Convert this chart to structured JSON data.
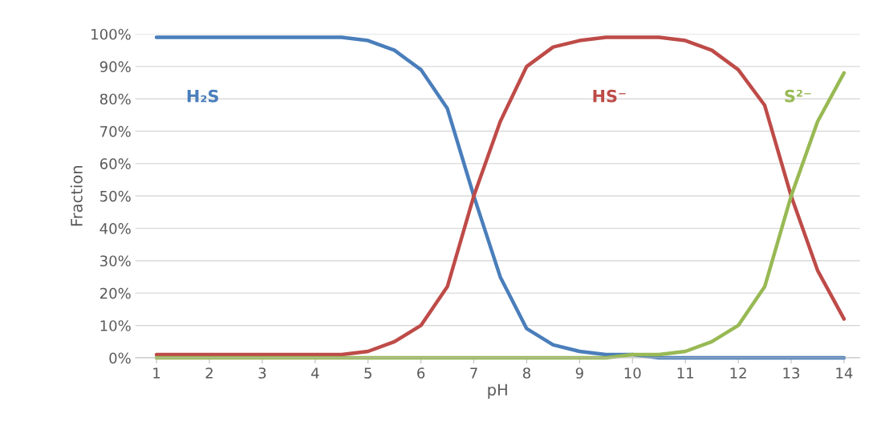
{
  "chart_data": {
    "type": "line",
    "xlabel": "pH",
    "ylabel": "Fraction",
    "xlim": [
      0.6,
      14.3
    ],
    "xticks": [
      1,
      2,
      3,
      4,
      5,
      6,
      7,
      8,
      9,
      10,
      11,
      12,
      13,
      14
    ],
    "ylim": [
      0,
      100
    ],
    "yticks": [
      {
        "value": 0,
        "label": "0%"
      },
      {
        "value": 10,
        "label": "10%"
      },
      {
        "value": 20,
        "label": "20%"
      },
      {
        "value": 30,
        "label": "30%"
      },
      {
        "value": 40,
        "label": "40%"
      },
      {
        "value": 50,
        "label": "50%"
      },
      {
        "value": 60,
        "label": "60%"
      },
      {
        "value": 70,
        "label": "70%"
      },
      {
        "value": 80,
        "label": "80%"
      },
      {
        "value": 90,
        "label": "90%"
      },
      {
        "value": 100,
        "label": "100%"
      }
    ],
    "grid": "y",
    "legend": false,
    "marker": "none",
    "line_style": "solid",
    "series": [
      {
        "name": "H₂S",
        "color": "#4a7ebb",
        "x": [
          1,
          2,
          3,
          4,
          4.5,
          5,
          5.5,
          6,
          6.5,
          7,
          7.5,
          8,
          8.5,
          9,
          9.5,
          10,
          10.5,
          11,
          12,
          13,
          14
        ],
        "values": [
          99,
          99,
          99,
          99,
          99,
          98,
          95,
          89,
          77,
          50,
          25,
          9,
          4,
          2,
          1,
          1,
          0,
          0,
          0,
          0,
          0
        ]
      },
      {
        "name": "HS⁻",
        "color": "#be4b48",
        "x": [
          1,
          2,
          3,
          4,
          4.5,
          5,
          5.5,
          6,
          6.5,
          7,
          7.5,
          8,
          8.5,
          9,
          9.5,
          10,
          10.5,
          11,
          11.5,
          12,
          12.5,
          13,
          13.5,
          14
        ],
        "values": [
          1,
          1,
          1,
          1,
          1,
          2,
          5,
          10,
          22,
          50,
          73,
          90,
          96,
          98,
          99,
          99,
          99,
          98,
          95,
          89,
          78,
          50,
          27,
          12
        ]
      },
      {
        "name": "S²⁻",
        "color": "#98b954",
        "x": [
          1,
          2,
          3,
          4,
          5,
          6,
          7,
          8,
          9,
          9.5,
          10,
          10.5,
          11,
          11.5,
          12,
          12.5,
          13,
          13.5,
          14
        ],
        "values": [
          0,
          0,
          0,
          0,
          0,
          0,
          0,
          0,
          0,
          0,
          1,
          1,
          2,
          5,
          10,
          22,
          50,
          73,
          88
        ]
      }
    ]
  }
}
